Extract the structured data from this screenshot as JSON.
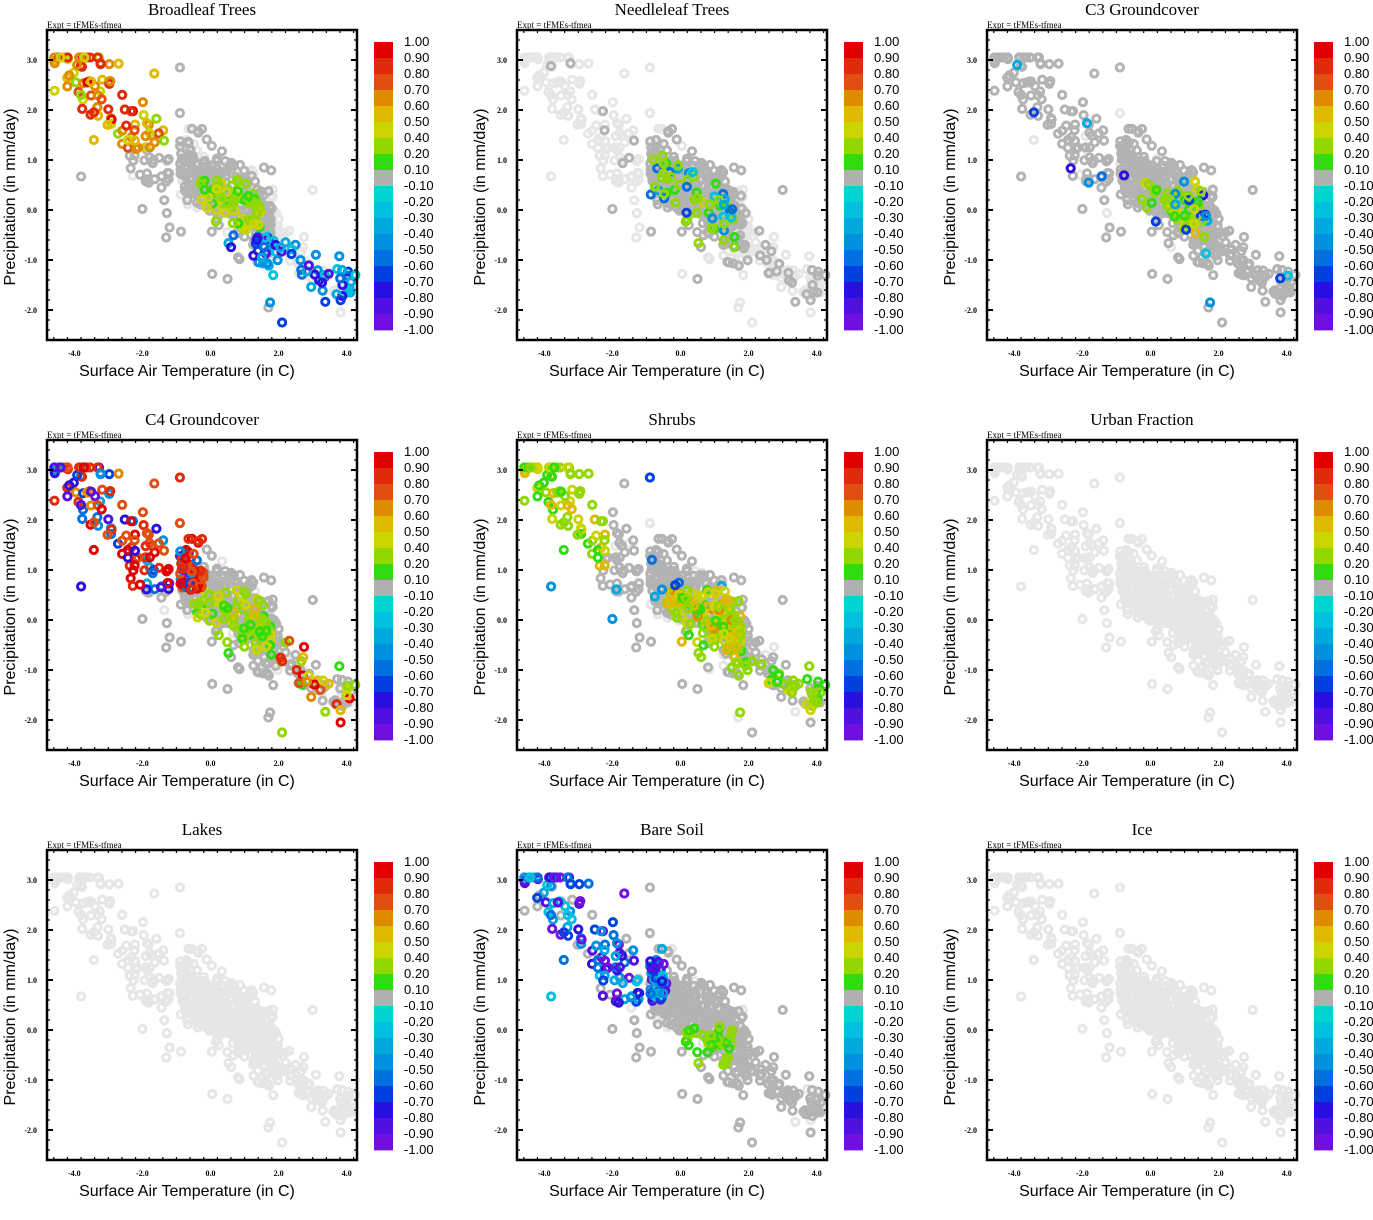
{
  "chart_data": [
    {
      "type": "scatter",
      "title": "Broadleaf Trees",
      "subtitle": "Expt = tFMEs-tfmea",
      "xlabel": "Surface Air Temperature (in C)",
      "ylabel": "Precipitation (in mm/day)",
      "xlim": [
        -4.8,
        4.3
      ],
      "ylim": [
        -2.6,
        3.6
      ],
      "xticks": [
        "-4.0",
        "-2.0",
        "0.0",
        "2.0",
        "4.0"
      ],
      "yticks": [
        "3.0",
        "2.0",
        "1.0",
        "0.0",
        "-1.0",
        "-2.0"
      ],
      "grid": false,
      "legend": "right colorbar",
      "highlight": "broadleaf"
    },
    {
      "type": "scatter",
      "title": "Needleleaf Trees",
      "subtitle": "Expt = tFMEs-tfmea",
      "xlabel": "Surface Air Temperature (in C)",
      "ylabel": "Precipitation (in mm/day)",
      "xlim": [
        -4.8,
        4.3
      ],
      "ylim": [
        -2.6,
        3.6
      ],
      "xticks": [
        "-4.0",
        "-2.0",
        "0.0",
        "2.0",
        "4.0"
      ],
      "yticks": [
        "3.0",
        "2.0",
        "1.0",
        "0.0",
        "-1.0",
        "-2.0"
      ],
      "grid": false,
      "legend": "right colorbar",
      "highlight": "needleleaf"
    },
    {
      "type": "scatter",
      "title": "C3 Groundcover",
      "subtitle": "Expt = tFMEs-tfmea",
      "xlabel": "Surface Air Temperature (in C)",
      "ylabel": "Precipitation (in mm/day)",
      "xlim": [
        -4.8,
        4.3
      ],
      "ylim": [
        -2.6,
        3.6
      ],
      "xticks": [
        "-4.0",
        "-2.0",
        "0.0",
        "2.0",
        "4.0"
      ],
      "yticks": [
        "3.0",
        "2.0",
        "1.0",
        "0.0",
        "-1.0",
        "-2.0"
      ],
      "grid": false,
      "legend": "right colorbar",
      "highlight": "c3"
    },
    {
      "type": "scatter",
      "title": "C4 Groundcover",
      "subtitle": "Expt = tFMEs-tfmea",
      "xlabel": "Surface Air Temperature (in C)",
      "ylabel": "Precipitation (in mm/day)",
      "xlim": [
        -4.8,
        4.3
      ],
      "ylim": [
        -2.6,
        3.6
      ],
      "xticks": [
        "-4.0",
        "-2.0",
        "0.0",
        "2.0",
        "4.0"
      ],
      "yticks": [
        "3.0",
        "2.0",
        "1.0",
        "0.0",
        "-1.0",
        "-2.0"
      ],
      "grid": false,
      "legend": "right colorbar",
      "highlight": "c4"
    },
    {
      "type": "scatter",
      "title": "Shrubs",
      "subtitle": "Expt = tFMEs-tfmea",
      "xlabel": "Surface Air Temperature (in C)",
      "ylabel": "Precipitation (in mm/day)",
      "xlim": [
        -4.8,
        4.3
      ],
      "ylim": [
        -2.6,
        3.6
      ],
      "xticks": [
        "-4.0",
        "-2.0",
        "0.0",
        "2.0",
        "4.0"
      ],
      "yticks": [
        "3.0",
        "2.0",
        "1.0",
        "0.0",
        "-1.0",
        "-2.0"
      ],
      "grid": false,
      "legend": "right colorbar",
      "highlight": "shrubs"
    },
    {
      "type": "scatter",
      "title": "Urban Fraction",
      "subtitle": "Expt = tFMEs-tfmea",
      "xlabel": "Surface Air Temperature (in C)",
      "ylabel": "Precipitation (in mm/day)",
      "xlim": [
        -4.8,
        4.3
      ],
      "ylim": [
        -2.6,
        3.6
      ],
      "xticks": [
        "-4.0",
        "-2.0",
        "0.0",
        "2.0",
        "4.0"
      ],
      "yticks": [
        "3.0",
        "2.0",
        "1.0",
        "0.0",
        "-1.0",
        "-2.0"
      ],
      "grid": false,
      "legend": "right colorbar",
      "highlight": "none"
    },
    {
      "type": "scatter",
      "title": "Lakes",
      "subtitle": "Expt = tFMEs-tfmea",
      "xlabel": "Surface Air Temperature (in C)",
      "ylabel": "Precipitation (in mm/day)",
      "xlim": [
        -4.8,
        4.3
      ],
      "ylim": [
        -2.6,
        3.6
      ],
      "xticks": [
        "-4.0",
        "-2.0",
        "0.0",
        "2.0",
        "4.0"
      ],
      "yticks": [
        "3.0",
        "2.0",
        "1.0",
        "0.0",
        "-1.0",
        "-2.0"
      ],
      "grid": false,
      "legend": "right colorbar",
      "highlight": "none"
    },
    {
      "type": "scatter",
      "title": "Bare Soil",
      "subtitle": "Expt = tFMEs-tfmea",
      "xlabel": "Surface Air Temperature (in C)",
      "ylabel": "Precipitation (in mm/day)",
      "xlim": [
        -4.8,
        4.3
      ],
      "ylim": [
        -2.6,
        3.6
      ],
      "xticks": [
        "-4.0",
        "-2.0",
        "0.0",
        "2.0",
        "4.0"
      ],
      "yticks": [
        "3.0",
        "2.0",
        "1.0",
        "0.0",
        "-1.0",
        "-2.0"
      ],
      "grid": false,
      "legend": "right colorbar",
      "highlight": "baresoil"
    },
    {
      "type": "scatter",
      "title": "Ice",
      "subtitle": "Expt = tFMEs-tfmea",
      "xlabel": "Surface Air Temperature (in C)",
      "ylabel": "Precipitation (in mm/day)",
      "xlim": [
        -4.8,
        4.3
      ],
      "ylim": [
        -2.6,
        3.6
      ],
      "xticks": [
        "-4.0",
        "-2.0",
        "0.0",
        "2.0",
        "4.0"
      ],
      "yticks": [
        "3.0",
        "2.0",
        "1.0",
        "0.0",
        "-1.0",
        "-2.0"
      ],
      "grid": false,
      "legend": "right colorbar",
      "highlight": "none"
    }
  ],
  "colorbar": {
    "labels": [
      "1.00",
      "0.90",
      "0.80",
      "0.70",
      "0.60",
      "0.50",
      "0.40",
      "0.20",
      "0.10",
      "-0.10",
      "-0.20",
      "-0.30",
      "-0.40",
      "-0.50",
      "-0.60",
      "-0.70",
      "-0.80",
      "-0.90",
      "-1.00"
    ],
    "colors": [
      "#e00000",
      "#e02a0a",
      "#e04e10",
      "#e08a00",
      "#e0b800",
      "#ccd400",
      "#90d800",
      "#30dc10",
      "#b0b0b0",
      "#00d4d0",
      "#00c0e0",
      "#00a8e0",
      "#0090e0",
      "#0070e0",
      "#0040e0",
      "#2a10e0",
      "#5010e0",
      "#7010e0"
    ]
  },
  "colors": {
    "neutral_in_range": "#b3b3b3",
    "neutral_out_of_range": "#e6e6e6",
    "axis": "#000000"
  }
}
